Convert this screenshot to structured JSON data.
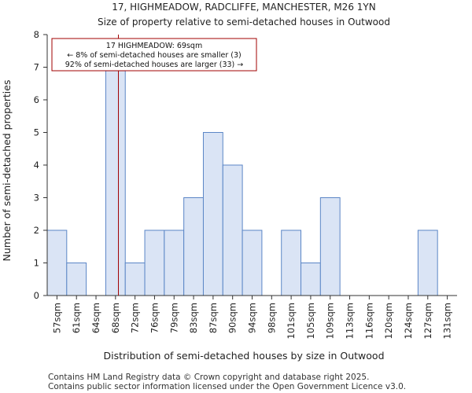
{
  "chart_data": {
    "type": "bar",
    "title_lines": [
      "17, HIGHMEADOW, RADCLIFFE, MANCHESTER, M26 1YN",
      "Size of property relative to semi-detached houses in Outwood"
    ],
    "xlabel": "Distribution of semi-detached houses by size in Outwood",
    "ylabel": "Number of semi-detached properties",
    "ylim": [
      0,
      8
    ],
    "yticks": [
      0,
      1,
      2,
      3,
      4,
      5,
      6,
      7,
      8
    ],
    "bin_edges": [
      55.5,
      59.2,
      62.9,
      66.6,
      70.3,
      74.0,
      77.7,
      81.4,
      85.1,
      88.8,
      92.5,
      96.2,
      99.9,
      103.6,
      107.3,
      111.0,
      114.7,
      118.4,
      122.1,
      125.8,
      129.5,
      133.2
    ],
    "tick_labels": [
      "57sqm",
      "61sqm",
      "64sqm",
      "68sqm",
      "72sqm",
      "76sqm",
      "79sqm",
      "83sqm",
      "87sqm",
      "90sqm",
      "94sqm",
      "98sqm",
      "101sqm",
      "105sqm",
      "109sqm",
      "113sqm",
      "116sqm",
      "120sqm",
      "124sqm",
      "127sqm",
      "131sqm"
    ],
    "values": [
      2,
      1,
      0,
      7,
      1,
      2,
      2,
      3,
      5,
      4,
      2,
      0,
      2,
      1,
      3,
      0,
      0,
      0,
      0,
      2,
      0
    ],
    "property_marker": {
      "value": 69,
      "color": "#a00000"
    },
    "annotation_lines": [
      "17 HIGHMEADOW: 69sqm",
      "← 8% of semi-detached houses are smaller (3)",
      "92% of semi-detached houses are larger (33) →"
    ],
    "colors": {
      "bar_fill": "#dae4f5",
      "bar_edge": "#5b86c6",
      "axis": "#333333",
      "annotation_border": "#a00000"
    }
  },
  "footer": {
    "line1": "Contains HM Land Registry data © Crown copyright and database right 2025.",
    "line2": "Contains public sector information licensed under the Open Government Licence v3.0."
  }
}
